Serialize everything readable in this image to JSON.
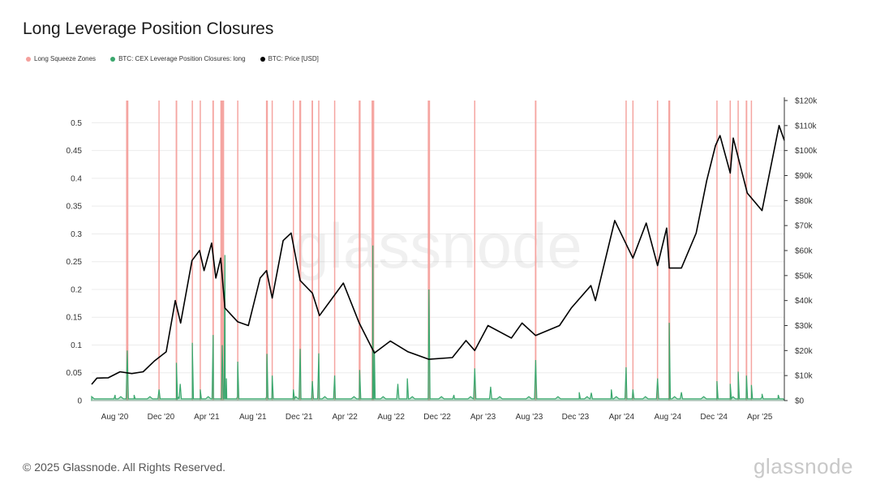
{
  "title": "Long Leverage Position Closures",
  "footer": "© 2025 Glassnode. All Rights Reserved.",
  "brand": "glassnode",
  "watermark": "glassnode",
  "colors": {
    "squeeze": "#f4a09c",
    "closures": "#3aa76d",
    "price": "#000000"
  },
  "chart_data": {
    "type": "line",
    "title": "Long Leverage Position Closures",
    "legend": [
      "Long Squeeze Zones",
      "BTC: CEX Leverage Position Closures: long",
      "BTC: Price [USD]"
    ],
    "legend_position": "top-left",
    "x_range": [
      "2020-06-01",
      "2025-06-05"
    ],
    "x_ticks": [
      {
        "date": "2020-08-01",
        "label": "Aug '20"
      },
      {
        "date": "2020-12-01",
        "label": "Dec '20"
      },
      {
        "date": "2021-04-01",
        "label": "Apr '21"
      },
      {
        "date": "2021-08-01",
        "label": "Aug '21"
      },
      {
        "date": "2021-12-01",
        "label": "Dec '21"
      },
      {
        "date": "2022-04-01",
        "label": "Apr '22"
      },
      {
        "date": "2022-08-01",
        "label": "Aug '22"
      },
      {
        "date": "2022-12-01",
        "label": "Dec '22"
      },
      {
        "date": "2023-04-01",
        "label": "Apr '23"
      },
      {
        "date": "2023-08-01",
        "label": "Aug '23"
      },
      {
        "date": "2023-12-01",
        "label": "Dec '23"
      },
      {
        "date": "2024-04-01",
        "label": "Apr '24"
      },
      {
        "date": "2024-08-01",
        "label": "Aug '24"
      },
      {
        "date": "2024-12-01",
        "label": "Dec '24"
      },
      {
        "date": "2025-04-01",
        "label": "Apr '25"
      }
    ],
    "y_left": {
      "range": [
        0,
        0.54
      ],
      "ticks": [
        0,
        0.05,
        0.1,
        0.15,
        0.2,
        0.25,
        0.3,
        0.35,
        0.4,
        0.45,
        0.5
      ],
      "labels": [
        "0",
        "0.05",
        "0.1",
        "0.15",
        "0.2",
        "0.25",
        "0.3",
        "0.35",
        "0.4",
        "0.45",
        "0.5"
      ]
    },
    "y_right": {
      "range": [
        0,
        120000
      ],
      "ticks": [
        0,
        10000,
        20000,
        30000,
        40000,
        50000,
        60000,
        70000,
        80000,
        90000,
        100000,
        110000,
        120000
      ],
      "labels": [
        "$0",
        "$10k",
        "$20k",
        "$30k",
        "$40k",
        "$50k",
        "$60k",
        "$70k",
        "$80k",
        "$90k",
        "$100k",
        "$110k",
        "$120k"
      ]
    },
    "grid": true,
    "squeeze_zones": [
      {
        "date": "2020-09-03",
        "width_days": 6
      },
      {
        "date": "2020-11-26",
        "width_days": 3
      },
      {
        "date": "2021-01-11",
        "width_days": 4
      },
      {
        "date": "2021-02-22",
        "width_days": 3
      },
      {
        "date": "2021-03-15",
        "width_days": 2
      },
      {
        "date": "2021-04-18",
        "width_days": 4
      },
      {
        "date": "2021-05-12",
        "width_days": 10
      },
      {
        "date": "2021-06-22",
        "width_days": 3
      },
      {
        "date": "2021-09-07",
        "width_days": 5
      },
      {
        "date": "2021-09-21",
        "width_days": 2
      },
      {
        "date": "2021-11-16",
        "width_days": 2
      },
      {
        "date": "2021-12-04",
        "width_days": 5
      },
      {
        "date": "2022-01-05",
        "width_days": 4
      },
      {
        "date": "2022-01-22",
        "width_days": 3
      },
      {
        "date": "2022-03-05",
        "width_days": 2
      },
      {
        "date": "2022-05-10",
        "width_days": 5
      },
      {
        "date": "2022-06-14",
        "width_days": 7
      },
      {
        "date": "2022-11-09",
        "width_days": 6
      },
      {
        "date": "2023-03-10",
        "width_days": 3
      },
      {
        "date": "2023-08-18",
        "width_days": 4
      },
      {
        "date": "2024-04-13",
        "width_days": 3
      },
      {
        "date": "2024-05-01",
        "width_days": 3
      },
      {
        "date": "2024-07-05",
        "width_days": 2
      },
      {
        "date": "2024-08-05",
        "width_days": 5
      },
      {
        "date": "2024-12-09",
        "width_days": 3
      },
      {
        "date": "2025-01-13",
        "width_days": 2
      },
      {
        "date": "2025-02-03",
        "width_days": 3
      },
      {
        "date": "2025-02-25",
        "width_days": 4
      },
      {
        "date": "2025-03-10",
        "width_days": 2
      }
    ],
    "closures": [
      {
        "date": "2020-08-02",
        "value": 0.01
      },
      {
        "date": "2020-09-03",
        "value": 0.09
      },
      {
        "date": "2020-09-21",
        "value": 0.01
      },
      {
        "date": "2020-11-26",
        "value": 0.02
      },
      {
        "date": "2021-01-11",
        "value": 0.068
      },
      {
        "date": "2021-01-21",
        "value": 0.03
      },
      {
        "date": "2021-02-22",
        "value": 0.104
      },
      {
        "date": "2021-03-15",
        "value": 0.02
      },
      {
        "date": "2021-04-18",
        "value": 0.118
      },
      {
        "date": "2021-05-12",
        "value": 0.1
      },
      {
        "date": "2021-05-19",
        "value": 0.262
      },
      {
        "date": "2021-05-23",
        "value": 0.04
      },
      {
        "date": "2021-06-22",
        "value": 0.07
      },
      {
        "date": "2021-09-07",
        "value": 0.084
      },
      {
        "date": "2021-09-21",
        "value": 0.045
      },
      {
        "date": "2021-11-16",
        "value": 0.02
      },
      {
        "date": "2021-12-04",
        "value": 0.093
      },
      {
        "date": "2022-01-05",
        "value": 0.035
      },
      {
        "date": "2022-01-22",
        "value": 0.085
      },
      {
        "date": "2022-03-05",
        "value": 0.045
      },
      {
        "date": "2022-05-10",
        "value": 0.055
      },
      {
        "date": "2022-06-14",
        "value": 0.279
      },
      {
        "date": "2022-06-18",
        "value": 0.09
      },
      {
        "date": "2022-08-19",
        "value": 0.03
      },
      {
        "date": "2022-09-13",
        "value": 0.04
      },
      {
        "date": "2022-11-09",
        "value": 0.2
      },
      {
        "date": "2023-01-14",
        "value": 0.01
      },
      {
        "date": "2023-03-10",
        "value": 0.058
      },
      {
        "date": "2023-04-21",
        "value": 0.025
      },
      {
        "date": "2023-08-18",
        "value": 0.073
      },
      {
        "date": "2023-12-11",
        "value": 0.015
      },
      {
        "date": "2024-01-12",
        "value": 0.014
      },
      {
        "date": "2024-03-05",
        "value": 0.02
      },
      {
        "date": "2024-04-13",
        "value": 0.06
      },
      {
        "date": "2024-05-01",
        "value": 0.02
      },
      {
        "date": "2024-07-05",
        "value": 0.04
      },
      {
        "date": "2024-08-05",
        "value": 0.14
      },
      {
        "date": "2024-09-06",
        "value": 0.015
      },
      {
        "date": "2024-12-09",
        "value": 0.035
      },
      {
        "date": "2025-01-13",
        "value": 0.03
      },
      {
        "date": "2025-02-03",
        "value": 0.052
      },
      {
        "date": "2025-02-25",
        "value": 0.045
      },
      {
        "date": "2025-03-10",
        "value": 0.028
      },
      {
        "date": "2025-04-07",
        "value": 0.012
      },
      {
        "date": "2025-05-20",
        "value": 0.01
      }
    ],
    "price": [
      {
        "date": "2020-06-01",
        "value": 6500
      },
      {
        "date": "2020-06-15",
        "value": 9000
      },
      {
        "date": "2020-07-15",
        "value": 9100
      },
      {
        "date": "2020-08-15",
        "value": 11500
      },
      {
        "date": "2020-09-15",
        "value": 10800
      },
      {
        "date": "2020-10-15",
        "value": 11500
      },
      {
        "date": "2020-11-15",
        "value": 16000
      },
      {
        "date": "2020-12-15",
        "value": 19500
      },
      {
        "date": "2021-01-08",
        "value": 40000
      },
      {
        "date": "2021-01-22",
        "value": 31000
      },
      {
        "date": "2021-02-21",
        "value": 56000
      },
      {
        "date": "2021-03-13",
        "value": 60000
      },
      {
        "date": "2021-03-25",
        "value": 52000
      },
      {
        "date": "2021-04-14",
        "value": 63000
      },
      {
        "date": "2021-04-25",
        "value": 49000
      },
      {
        "date": "2021-05-08",
        "value": 57000
      },
      {
        "date": "2021-05-19",
        "value": 37000
      },
      {
        "date": "2021-06-22",
        "value": 31500
      },
      {
        "date": "2021-07-20",
        "value": 30000
      },
      {
        "date": "2021-08-20",
        "value": 49000
      },
      {
        "date": "2021-09-06",
        "value": 52000
      },
      {
        "date": "2021-09-21",
        "value": 41000
      },
      {
        "date": "2021-10-20",
        "value": 64000
      },
      {
        "date": "2021-11-10",
        "value": 67000
      },
      {
        "date": "2021-12-04",
        "value": 48000
      },
      {
        "date": "2022-01-05",
        "value": 43000
      },
      {
        "date": "2022-01-24",
        "value": 34000
      },
      {
        "date": "2022-03-28",
        "value": 47000
      },
      {
        "date": "2022-05-09",
        "value": 31000
      },
      {
        "date": "2022-06-18",
        "value": 19000
      },
      {
        "date": "2022-07-30",
        "value": 23800
      },
      {
        "date": "2022-09-15",
        "value": 19500
      },
      {
        "date": "2022-11-09",
        "value": 16500
      },
      {
        "date": "2023-01-10",
        "value": 17200
      },
      {
        "date": "2023-02-15",
        "value": 24000
      },
      {
        "date": "2023-03-10",
        "value": 20000
      },
      {
        "date": "2023-04-14",
        "value": 30000
      },
      {
        "date": "2023-06-15",
        "value": 25000
      },
      {
        "date": "2023-07-13",
        "value": 31000
      },
      {
        "date": "2023-08-18",
        "value": 26000
      },
      {
        "date": "2023-10-20",
        "value": 30000
      },
      {
        "date": "2023-11-20",
        "value": 37000
      },
      {
        "date": "2024-01-11",
        "value": 46000
      },
      {
        "date": "2024-01-23",
        "value": 40000
      },
      {
        "date": "2024-03-14",
        "value": 72000
      },
      {
        "date": "2024-05-01",
        "value": 57000
      },
      {
        "date": "2024-06-05",
        "value": 71000
      },
      {
        "date": "2024-07-05",
        "value": 54000
      },
      {
        "date": "2024-07-29",
        "value": 69000
      },
      {
        "date": "2024-08-05",
        "value": 53000
      },
      {
        "date": "2024-09-06",
        "value": 53000
      },
      {
        "date": "2024-10-15",
        "value": 67000
      },
      {
        "date": "2024-11-12",
        "value": 88000
      },
      {
        "date": "2024-12-05",
        "value": 102000
      },
      {
        "date": "2024-12-17",
        "value": 106000
      },
      {
        "date": "2025-01-13",
        "value": 91000
      },
      {
        "date": "2025-01-21",
        "value": 105000
      },
      {
        "date": "2025-02-27",
        "value": 83000
      },
      {
        "date": "2025-04-07",
        "value": 76000
      },
      {
        "date": "2025-05-22",
        "value": 110000
      },
      {
        "date": "2025-06-05",
        "value": 104000
      }
    ]
  }
}
